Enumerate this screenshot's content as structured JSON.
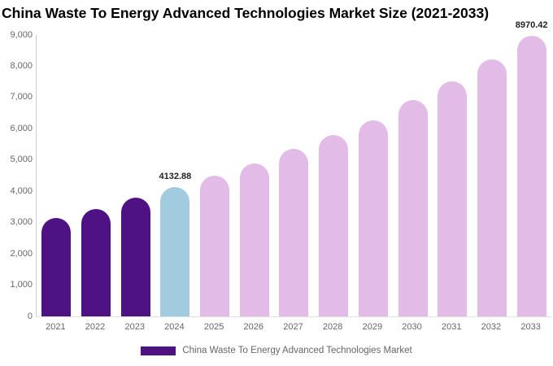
{
  "title": "China Waste To Energy Advanced Technologies Market Size (2021-2033)",
  "legend": {
    "label": "China Waste To Energy Advanced Technologies Market",
    "swatch_color": "#4F1285"
  },
  "colors": {
    "historical_bar": "#4F1285",
    "current_year_bar": "#A2CBDF",
    "forecast_bar": "#E3BBE7",
    "axis_text": "#666666",
    "value_label_text": "#222222",
    "title_text": "#000000",
    "axis_line": "#CCCCCC"
  },
  "chart_data": {
    "type": "bar",
    "title": "China Waste To Energy Advanced Technologies Market Size (2021-2033)",
    "categories": [
      "2021",
      "2022",
      "2023",
      "2024",
      "2025",
      "2026",
      "2027",
      "2028",
      "2029",
      "2030",
      "2031",
      "2032",
      "2033"
    ],
    "values": [
      3160,
      3440,
      3800,
      4132.88,
      4490,
      4900,
      5360,
      5800,
      6270,
      6910,
      7520,
      8230,
      8970.42
    ],
    "value_labels": [
      null,
      null,
      null,
      "4132.88",
      null,
      null,
      null,
      null,
      null,
      null,
      null,
      null,
      "8970.42"
    ],
    "bar_colors": [
      "#4F1285",
      "#4F1285",
      "#4F1285",
      "#A2CBDF",
      "#E3BBE7",
      "#E3BBE7",
      "#E3BBE7",
      "#E3BBE7",
      "#E3BBE7",
      "#E3BBE7",
      "#E3BBE7",
      "#E3BBE7",
      "#E3BBE7"
    ],
    "xlabel": "",
    "ylabel": "",
    "ylim": [
      0,
      9000
    ],
    "y_tick_step": 1000,
    "y_tick_labels": [
      "0",
      "1,000",
      "2,000",
      "3,000",
      "4,000",
      "5,000",
      "6,000",
      "7,000",
      "8,000",
      "9,000"
    ],
    "grid": false,
    "legend_position": "bottom",
    "legend_entries": [
      "China Waste To Energy Advanced Technologies Market"
    ]
  }
}
